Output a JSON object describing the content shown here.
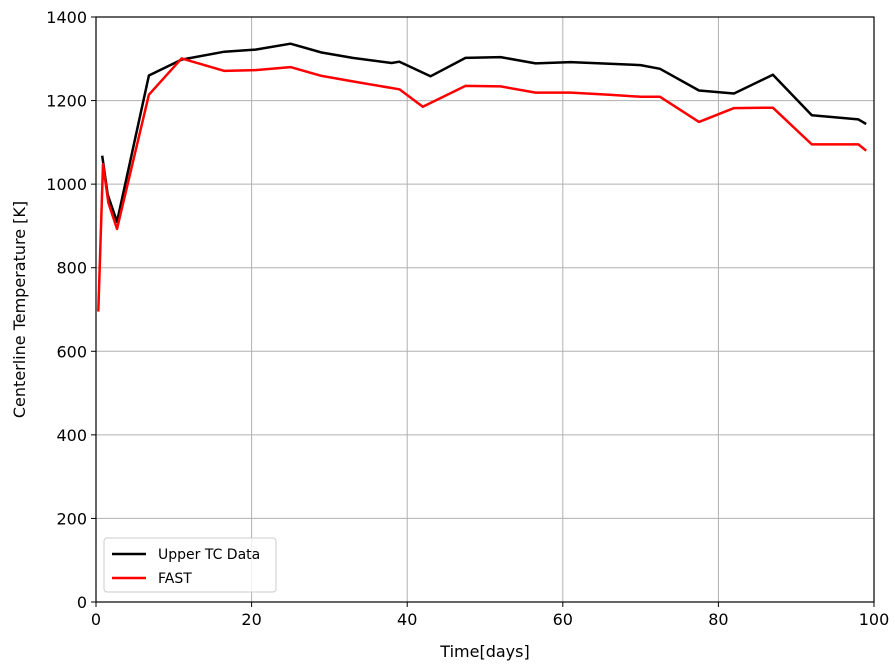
{
  "chart_data": {
    "type": "line",
    "title": "",
    "xlabel": "Time[days]",
    "ylabel": "Centerline Temperature [K]",
    "xlim": [
      0,
      100
    ],
    "ylim": [
      0,
      1400
    ],
    "xticks": [
      0,
      20,
      40,
      60,
      80,
      100
    ],
    "yticks": [
      0,
      200,
      400,
      600,
      800,
      1000,
      1200,
      1400
    ],
    "grid": true,
    "legend_position": "lower-left",
    "series": [
      {
        "name": "Upper TC Data",
        "color": "#000000",
        "x": [
          0.8,
          1.5,
          2.7,
          6.8,
          11,
          16.5,
          20.5,
          25,
          29,
          33,
          38,
          39,
          43,
          47.5,
          52,
          56.5,
          61,
          66,
          70,
          72.5,
          77.5,
          82,
          87,
          92,
          98,
          99
        ],
        "y": [
          1068,
          975,
          910,
          1260,
          1298,
          1317,
          1322,
          1336,
          1315,
          1302,
          1290,
          1293,
          1258,
          1302,
          1304,
          1289,
          1292,
          1288,
          1285,
          1276,
          1224,
          1217,
          1262,
          1165,
          1155,
          1144
        ]
      },
      {
        "name": "FAST",
        "color": "#ff0000",
        "x": [
          0.3,
          0.9,
          1.6,
          2.7,
          6.8,
          11,
          16.5,
          20.5,
          25,
          29,
          33,
          38,
          39,
          42,
          47.5,
          52,
          56.5,
          61,
          66,
          70,
          72.5,
          77.5,
          82,
          87,
          92,
          98,
          99
        ],
        "y": [
          695,
          1048,
          955,
          893,
          1214,
          1301,
          1271,
          1273,
          1280,
          1259,
          1246,
          1230,
          1227,
          1185,
          1235,
          1234,
          1219,
          1219,
          1214,
          1209,
          1209,
          1149,
          1182,
          1183,
          1095,
          1095,
          1080
        ]
      }
    ]
  }
}
